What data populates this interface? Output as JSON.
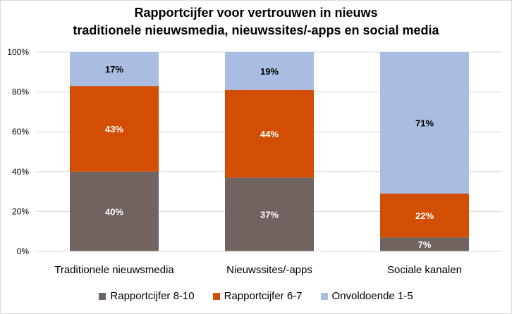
{
  "chart_data": {
    "type": "bar",
    "stacked": true,
    "title": [
      "Rapportcijfer voor vertrouwen in nieuws",
      "traditionele nieuwsmedia, nieuwssites/-apps en social media"
    ],
    "categories": [
      "Traditionele nieuwsmedia",
      "Nieuwssites/-apps",
      "Sociale kanalen"
    ],
    "series": [
      {
        "name": "Rapportcijfer 8-10",
        "color": "#71635f",
        "label_color": "#ffffff",
        "values": [
          40,
          37,
          7
        ],
        "labels": [
          "40%",
          "37%",
          "7%"
        ]
      },
      {
        "name": "Rapportcijfer 6-7",
        "color": "#d24e04",
        "label_color": "#ffffff",
        "values": [
          43,
          44,
          22
        ],
        "labels": [
          "43%",
          "44%",
          "22%"
        ]
      },
      {
        "name": "Onvoldoende 1-5",
        "color": "#a9bde3",
        "label_color": "#000000",
        "values": [
          17,
          19,
          71
        ],
        "labels": [
          "17%",
          "19%",
          "71%"
        ]
      }
    ],
    "ylim": [
      0,
      100
    ],
    "yticks": [
      "0%",
      "20%",
      "40%",
      "60%",
      "80%",
      "100%"
    ],
    "grid": true,
    "legend": "bottom"
  }
}
